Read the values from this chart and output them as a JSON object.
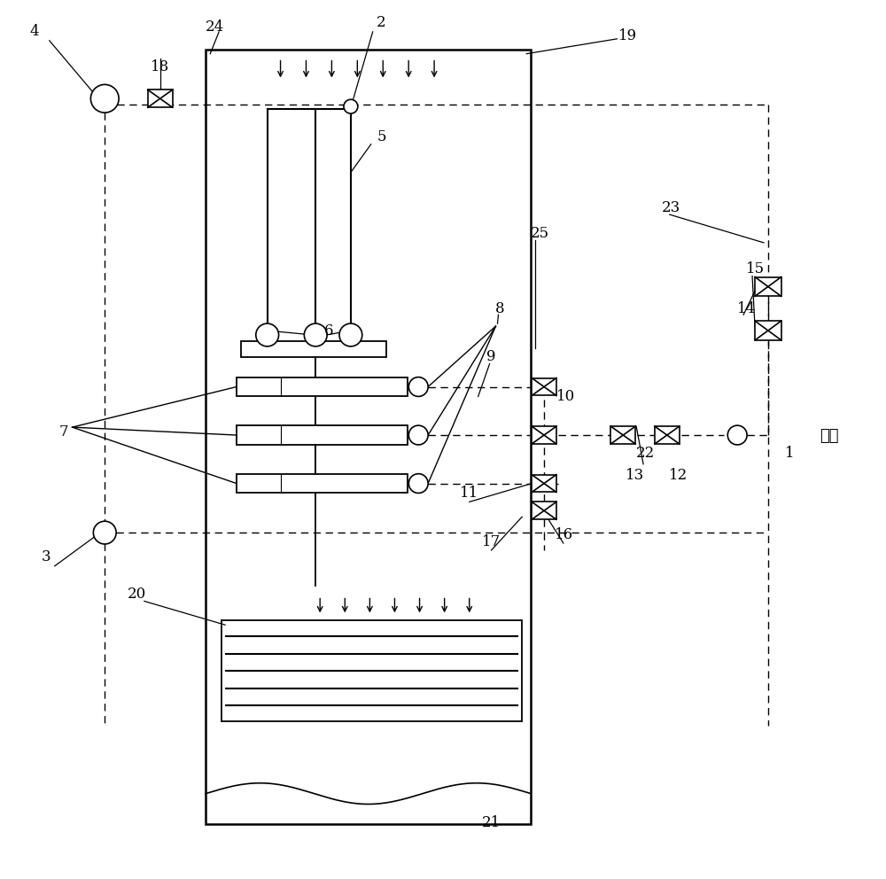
{
  "fig_width": 10.0,
  "fig_height": 9.92,
  "bg_color": "#ffffff",
  "line_color": "#000000"
}
